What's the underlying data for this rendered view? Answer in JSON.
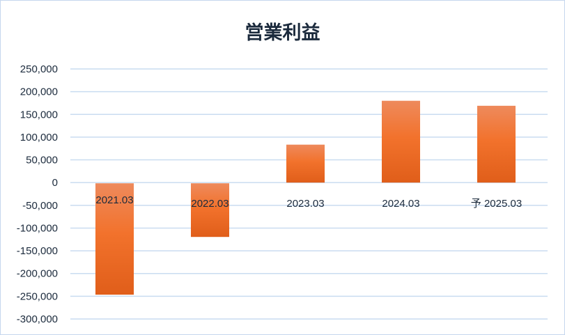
{
  "chart_data": {
    "type": "bar",
    "title": "営業利益",
    "categories": [
      "2021.03",
      "2022.03",
      "2023.03",
      "2024.03",
      "予 2025.03"
    ],
    "values": [
      -245000,
      -118000,
      83500,
      180000,
      169000
    ],
    "ylim": [
      -300000,
      250000
    ],
    "yticks": [
      250000,
      200000,
      150000,
      100000,
      50000,
      0,
      -50000,
      -100000,
      -150000,
      -200000,
      -250000,
      -300000
    ],
    "ytick_labels": [
      "250,000",
      "200,000",
      "150,000",
      "100,000",
      "50,000",
      "0",
      "-50,000",
      "-100,000",
      "-150,000",
      "-200,000",
      "-250,000",
      "-300,000"
    ],
    "grid": true,
    "legend": "none",
    "colors": {
      "bar_top": "#ee8a5c",
      "bar_mid": "#f2722c",
      "bar_bottom": "#e05e1a",
      "grid": "#c9dcf0",
      "text": "#1b2a3c"
    }
  }
}
